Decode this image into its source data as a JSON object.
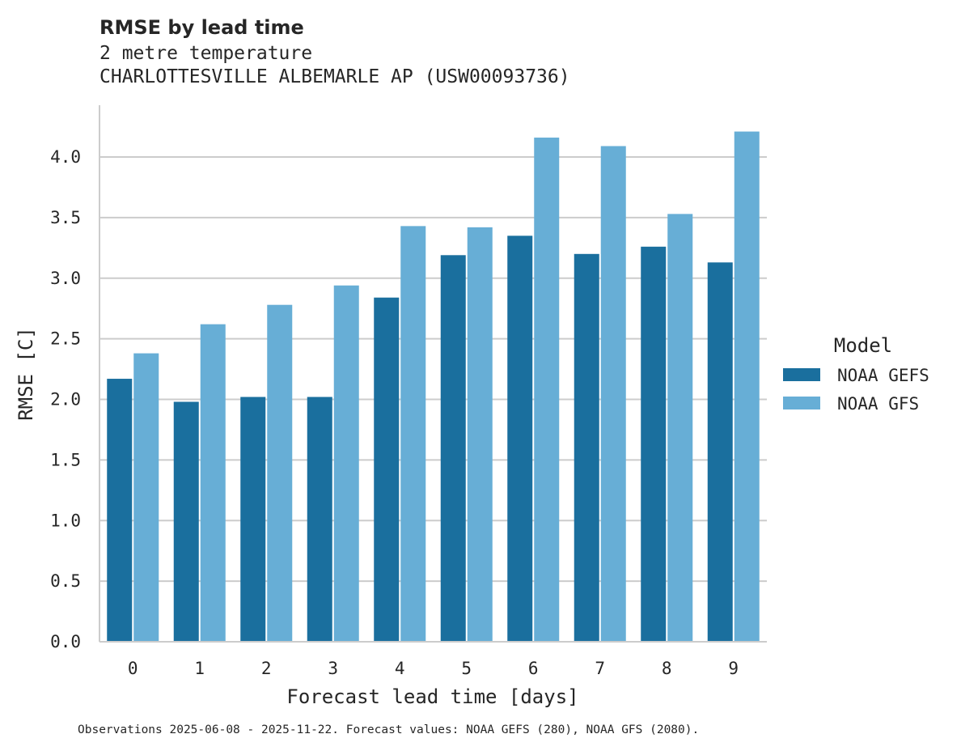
{
  "chart_data": {
    "type": "bar",
    "title": "RMSE by lead time",
    "subtitle_1": "2 metre temperature",
    "subtitle_2": "CHARLOTTESVILLE ALBEMARLE AP (USW00093736)",
    "xlabel": "Forecast lead time [days]",
    "ylabel": "RMSE [C]",
    "categories": [
      "0",
      "1",
      "2",
      "3",
      "4",
      "5",
      "6",
      "7",
      "8",
      "9"
    ],
    "ylim": [
      0,
      4.4
    ],
    "yticks": [
      "0.0",
      "0.5",
      "1.0",
      "1.5",
      "2.0",
      "2.5",
      "3.0",
      "3.5",
      "4.0"
    ],
    "grid": true,
    "legend": {
      "title": "Model",
      "placement": "right"
    },
    "series": [
      {
        "name": "NOAA GEFS",
        "color": "#1a6f9e",
        "values": [
          2.17,
          1.98,
          2.02,
          2.02,
          2.84,
          3.19,
          3.35,
          3.2,
          3.26,
          3.13
        ]
      },
      {
        "name": "NOAA GFS",
        "color": "#67aed6",
        "values": [
          2.38,
          2.62,
          2.78,
          2.94,
          3.43,
          3.42,
          4.16,
          4.09,
          3.53,
          4.21
        ]
      }
    ],
    "footnote": "Observations 2025-06-08 - 2025-11-22. Forecast values: NOAA GEFS (280), NOAA GFS (2080)."
  }
}
